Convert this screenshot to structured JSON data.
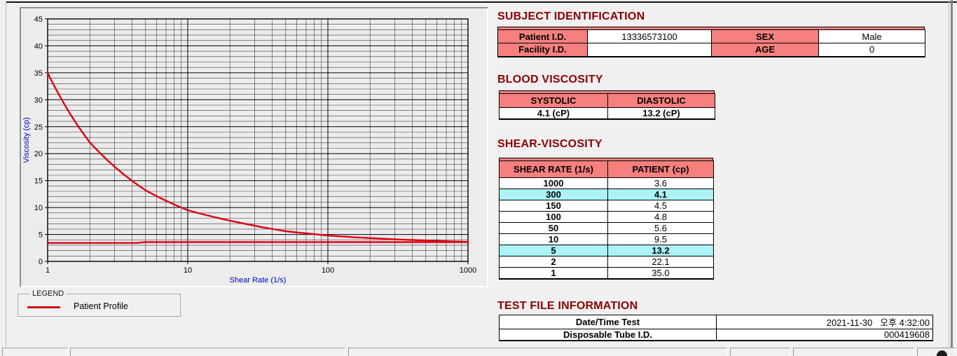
{
  "chart_data": {
    "type": "line",
    "x_scale": "log",
    "xlim": [
      1,
      1000
    ],
    "ylim": [
      0,
      45
    ],
    "x_ticks": [
      "1",
      "10",
      "100",
      "1000"
    ],
    "y_ticks": [
      0,
      5,
      10,
      15,
      20,
      25,
      30,
      35,
      40,
      45
    ],
    "y_minor_step": 1,
    "xlabel": "Shear Rate (1/s)",
    "ylabel": "Viscosity (cp)",
    "axis_label_color": "#0000cc",
    "grid": true,
    "legend_position": "below-left",
    "series": [
      {
        "name": "Patient Profile",
        "color": "#dd0011",
        "smooth": true,
        "points": [
          [
            1,
            35.0
          ],
          [
            2,
            22.1
          ],
          [
            5,
            13.2
          ],
          [
            10,
            9.5
          ],
          [
            50,
            5.6
          ],
          [
            100,
            4.8
          ],
          [
            150,
            4.5
          ],
          [
            300,
            4.1
          ],
          [
            1000,
            3.6
          ]
        ]
      },
      {
        "name": "measured-baseline",
        "color": "#dd0011",
        "smooth": false,
        "points": [
          [
            1,
            3.42
          ],
          [
            4.3,
            3.42
          ],
          [
            4.9,
            3.58
          ],
          [
            1000,
            3.58
          ]
        ]
      }
    ]
  },
  "legend": {
    "box_label": "LEGEND",
    "entries": [
      {
        "label": "Patient Profile",
        "color": "#cc1111"
      }
    ]
  },
  "sections": {
    "subject_identification": {
      "title": "SUBJECT IDENTIFICATION",
      "rows": [
        {
          "label": "Patient I.D.",
          "value": "13336573100",
          "label2": "SEX",
          "value2": "Male"
        },
        {
          "label": "Facility I.D.",
          "value": "",
          "label2": "AGE",
          "value2": "0"
        }
      ]
    },
    "blood_viscosity": {
      "title": "BLOOD VISCOSITY",
      "headers": [
        "SYSTOLIC",
        "DIASTOLIC"
      ],
      "values": [
        "4.1 (cP)",
        "13.2 (cP)"
      ]
    },
    "shear_viscosity": {
      "title": "SHEAR-VISCOSITY",
      "headers": [
        "SHEAR RATE (1/s)",
        "PATIENT (cp)"
      ],
      "rows": [
        {
          "rate": "1000",
          "value": "3.6",
          "highlight": false
        },
        {
          "rate": "300",
          "value": "4.1",
          "highlight": true
        },
        {
          "rate": "150",
          "value": "4.5",
          "highlight": false
        },
        {
          "rate": "100",
          "value": "4.8",
          "highlight": false
        },
        {
          "rate": "50",
          "value": "5.6",
          "highlight": false
        },
        {
          "rate": "10",
          "value": "9.5",
          "highlight": false
        },
        {
          "rate": "5",
          "value": "13.2",
          "highlight": true
        },
        {
          "rate": "2",
          "value": "22.1",
          "highlight": false
        },
        {
          "rate": "1",
          "value": "35.0",
          "highlight": false
        }
      ]
    },
    "test_file_information": {
      "title": "TEST FILE INFORMATION",
      "rows": [
        {
          "label": "Date/Time Test",
          "value": "2021-11-30   오후 4:32:00"
        },
        {
          "label": "Disposable Tube I.D.",
          "value": "000419608"
        }
      ]
    }
  },
  "colors": {
    "section_title": "#8b0000",
    "table_header_bg": "#f5807e",
    "row_highlight_bg": "#abf3f5",
    "curve": "#dd0011",
    "axis_label": "#0000cc"
  }
}
